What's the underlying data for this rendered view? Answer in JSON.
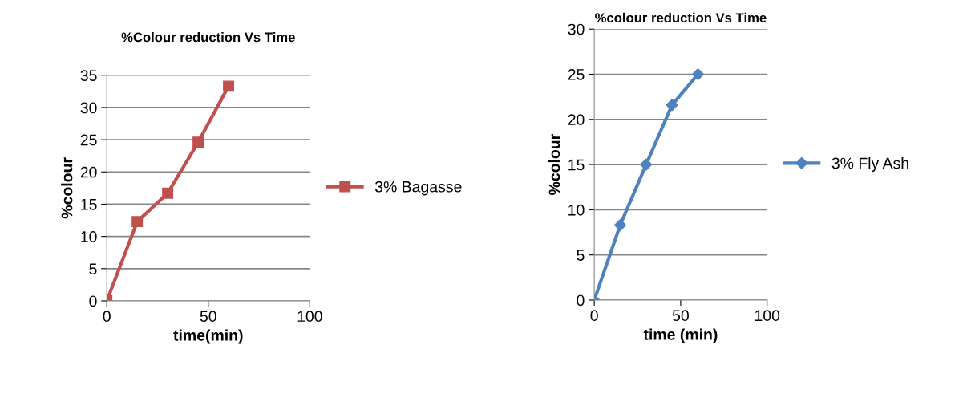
{
  "chart_data": [
    {
      "type": "line",
      "title": "%Colour reduction Vs Time",
      "xlabel": "time(min)",
      "ylabel": "%colour",
      "x": [
        0,
        15,
        30,
        45,
        60
      ],
      "series": [
        {
          "name": "3% Bagasse",
          "color": "#c0504d",
          "values": [
            0,
            12.3,
            16.7,
            24.6,
            33.3
          ]
        }
      ],
      "xlim": [
        0,
        100
      ],
      "xticks": [
        0,
        50,
        100
      ],
      "ylim": [
        0,
        35
      ],
      "yticks": [
        0,
        5,
        10,
        15,
        20,
        25,
        30,
        35
      ],
      "grid": "y",
      "legend": "right",
      "marker": "square",
      "line_style": "solid"
    },
    {
      "type": "line",
      "title": "%colour reduction Vs Time",
      "xlabel": "time (min)",
      "ylabel": "%colour",
      "x": [
        0,
        15,
        30,
        45,
        60
      ],
      "series": [
        {
          "name": "3% Fly Ash",
          "color": "#4f81bd",
          "values": [
            0,
            8.3,
            15,
            21.6,
            25
          ]
        }
      ],
      "xlim": [
        0,
        100
      ],
      "xticks": [
        0,
        50,
        100
      ],
      "ylim": [
        0,
        30
      ],
      "yticks": [
        0,
        5,
        10,
        15,
        20,
        25,
        30
      ],
      "grid": "y",
      "legend": "right",
      "marker": "diamond",
      "line_style": "solid"
    }
  ]
}
